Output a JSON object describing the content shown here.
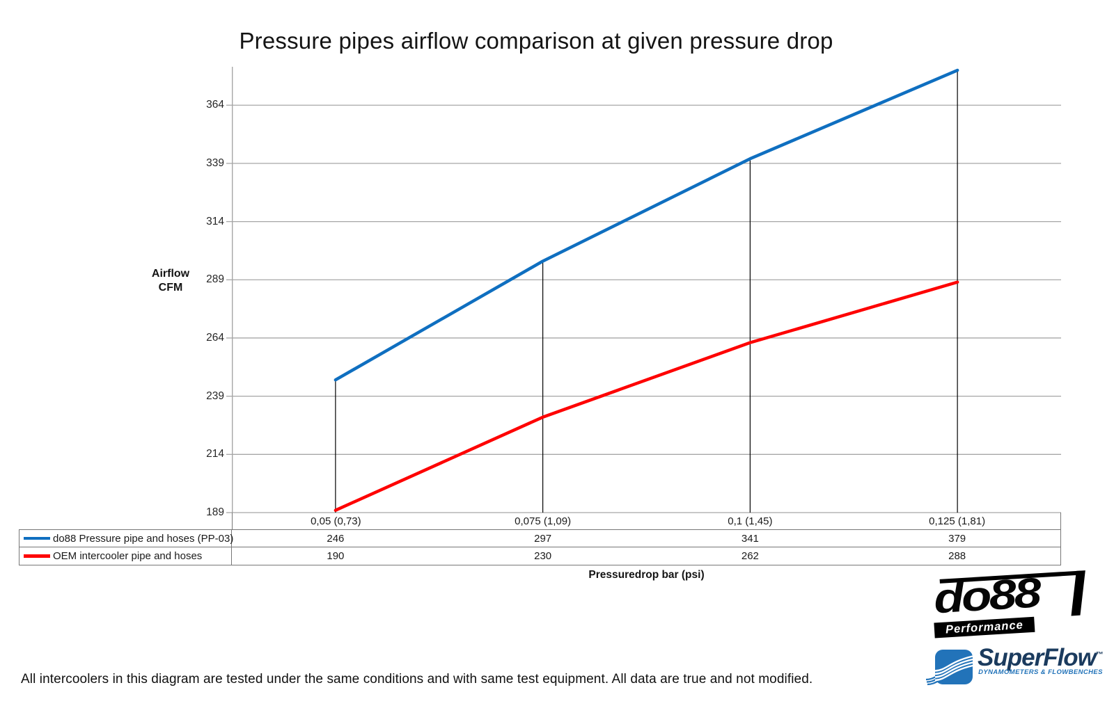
{
  "title": "Pressure pipes airflow comparison at given pressure drop",
  "chart_data": {
    "type": "line",
    "categories": [
      "0,05 (0,73)",
      "0,075 (1,09)",
      "0,1 (1,45)",
      "0,125 (1,81)"
    ],
    "series": [
      {
        "name": "do88 Pressure pipe and hoses (PP-03)",
        "color": "#0f6fc0",
        "values": [
          246,
          297,
          341,
          379
        ]
      },
      {
        "name": "OEM intercooler pipe and hoses",
        "color": "#fe0000",
        "values": [
          190,
          230,
          262,
          288
        ]
      }
    ],
    "title": "Pressure pipes airflow comparison at given pressure drop",
    "xlabel": "Pressuredrop bar (psi)",
    "ylabel": "Airflow CFM",
    "yticks": [
      189,
      214,
      239,
      264,
      289,
      314,
      339,
      364
    ],
    "ylim": [
      189,
      380.5
    ],
    "grid": true,
    "drop_lines_from_series": 0,
    "legend_position": "table-left",
    "gridline_color": "#a6a6a6",
    "drop_line_color": "#000000"
  },
  "axis": {
    "ylabel_line1": "Airflow",
    "ylabel_line2": "CFM",
    "xlabel": "Pressuredrop bar (psi)"
  },
  "footer": "All intercoolers in this diagram are tested under the same conditions and with same test equipment. All data are true and not modified.",
  "logos": {
    "do88": {
      "text": "do88",
      "sub": "Performance"
    },
    "superflow": {
      "text": "SuperFlow",
      "tm": "™",
      "sub": "DYNAMOMETERS & FLOWBENCHES"
    }
  }
}
